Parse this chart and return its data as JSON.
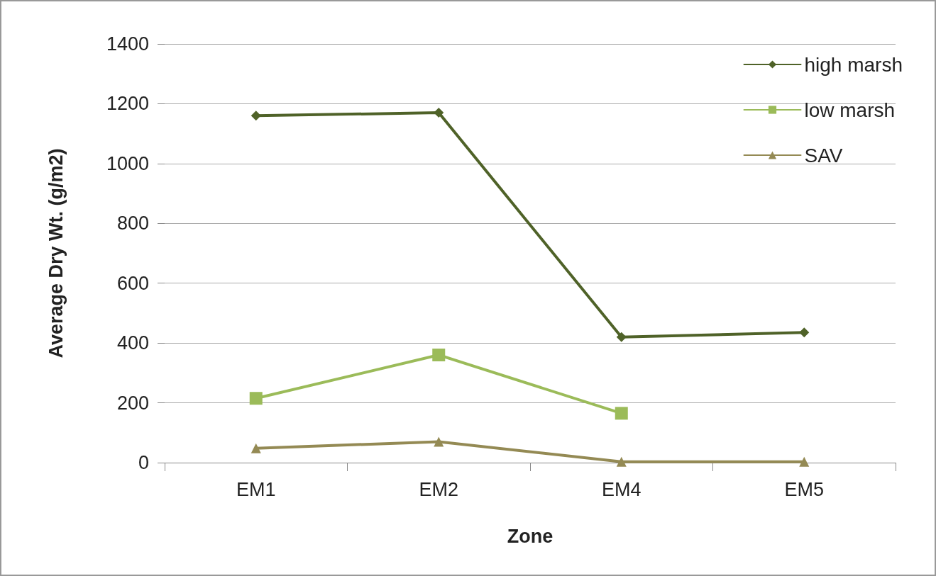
{
  "chart_data": {
    "type": "line",
    "xlabel": "Zone",
    "ylabel": "Average Dry Wt. (g/m2)",
    "categories": [
      "EM1",
      "EM2",
      "EM4",
      "EM5"
    ],
    "series": [
      {
        "name": "high marsh",
        "color": "#4f6228",
        "marker": "diamond",
        "values": [
          1160,
          1170,
          420,
          435
        ]
      },
      {
        "name": "low marsh",
        "color": "#9bbb59",
        "marker": "square",
        "values": [
          215,
          360,
          165,
          null
        ]
      },
      {
        "name": "SAV",
        "color": "#948a54",
        "marker": "triangle",
        "values": [
          48,
          70,
          3,
          3
        ]
      }
    ],
    "ylim": [
      0,
      1400
    ],
    "yticks": [
      0,
      200,
      400,
      600,
      800,
      1000,
      1200,
      1400
    ],
    "grid": "y",
    "legend": "top right",
    "line_style": "solid"
  }
}
